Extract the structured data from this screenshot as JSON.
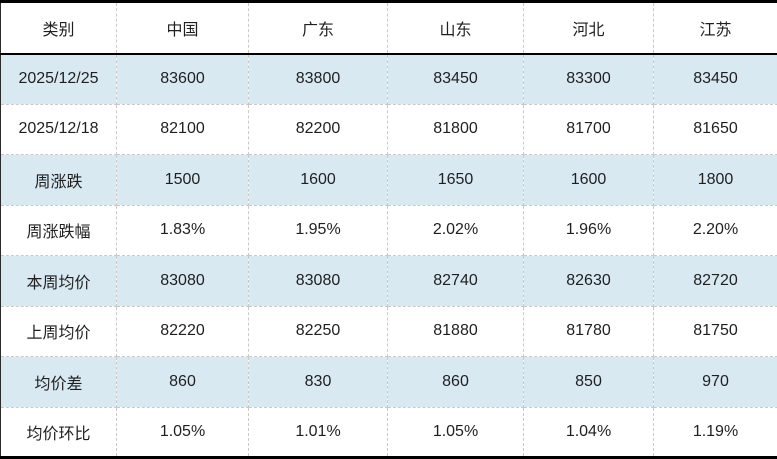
{
  "table": {
    "columns": [
      "类别",
      "中国",
      "广东",
      "山东",
      "河北",
      "江苏"
    ],
    "rows": [
      {
        "label": "2025/12/25",
        "values": [
          "83600",
          "83800",
          "83450",
          "83300",
          "83450"
        ]
      },
      {
        "label": "2025/12/18",
        "values": [
          "82100",
          "82200",
          "81800",
          "81700",
          "81650"
        ]
      },
      {
        "label": "周涨跌",
        "values": [
          "1500",
          "1600",
          "1650",
          "1600",
          "1800"
        ]
      },
      {
        "label": "周涨跌幅",
        "values": [
          "1.83%",
          "1.95%",
          "2.02%",
          "1.96%",
          "2.20%"
        ]
      },
      {
        "label": "本周均价",
        "values": [
          "83080",
          "83080",
          "82740",
          "82630",
          "82720"
        ]
      },
      {
        "label": "上周均价",
        "values": [
          "82220",
          "82250",
          "81880",
          "81780",
          "81750"
        ]
      },
      {
        "label": "均价差",
        "values": [
          "860",
          "830",
          "860",
          "850",
          "970"
        ]
      },
      {
        "label": "均价环比",
        "values": [
          "1.05%",
          "1.01%",
          "1.05%",
          "1.04%",
          "1.19%"
        ]
      }
    ],
    "colors": {
      "stripe_row_background": "#d9e9f2",
      "plain_row_background": "#ffffff",
      "heavy_border": "#000000",
      "light_dashed_border": "#c9c9c9",
      "text": "#1f1f1f"
    }
  }
}
